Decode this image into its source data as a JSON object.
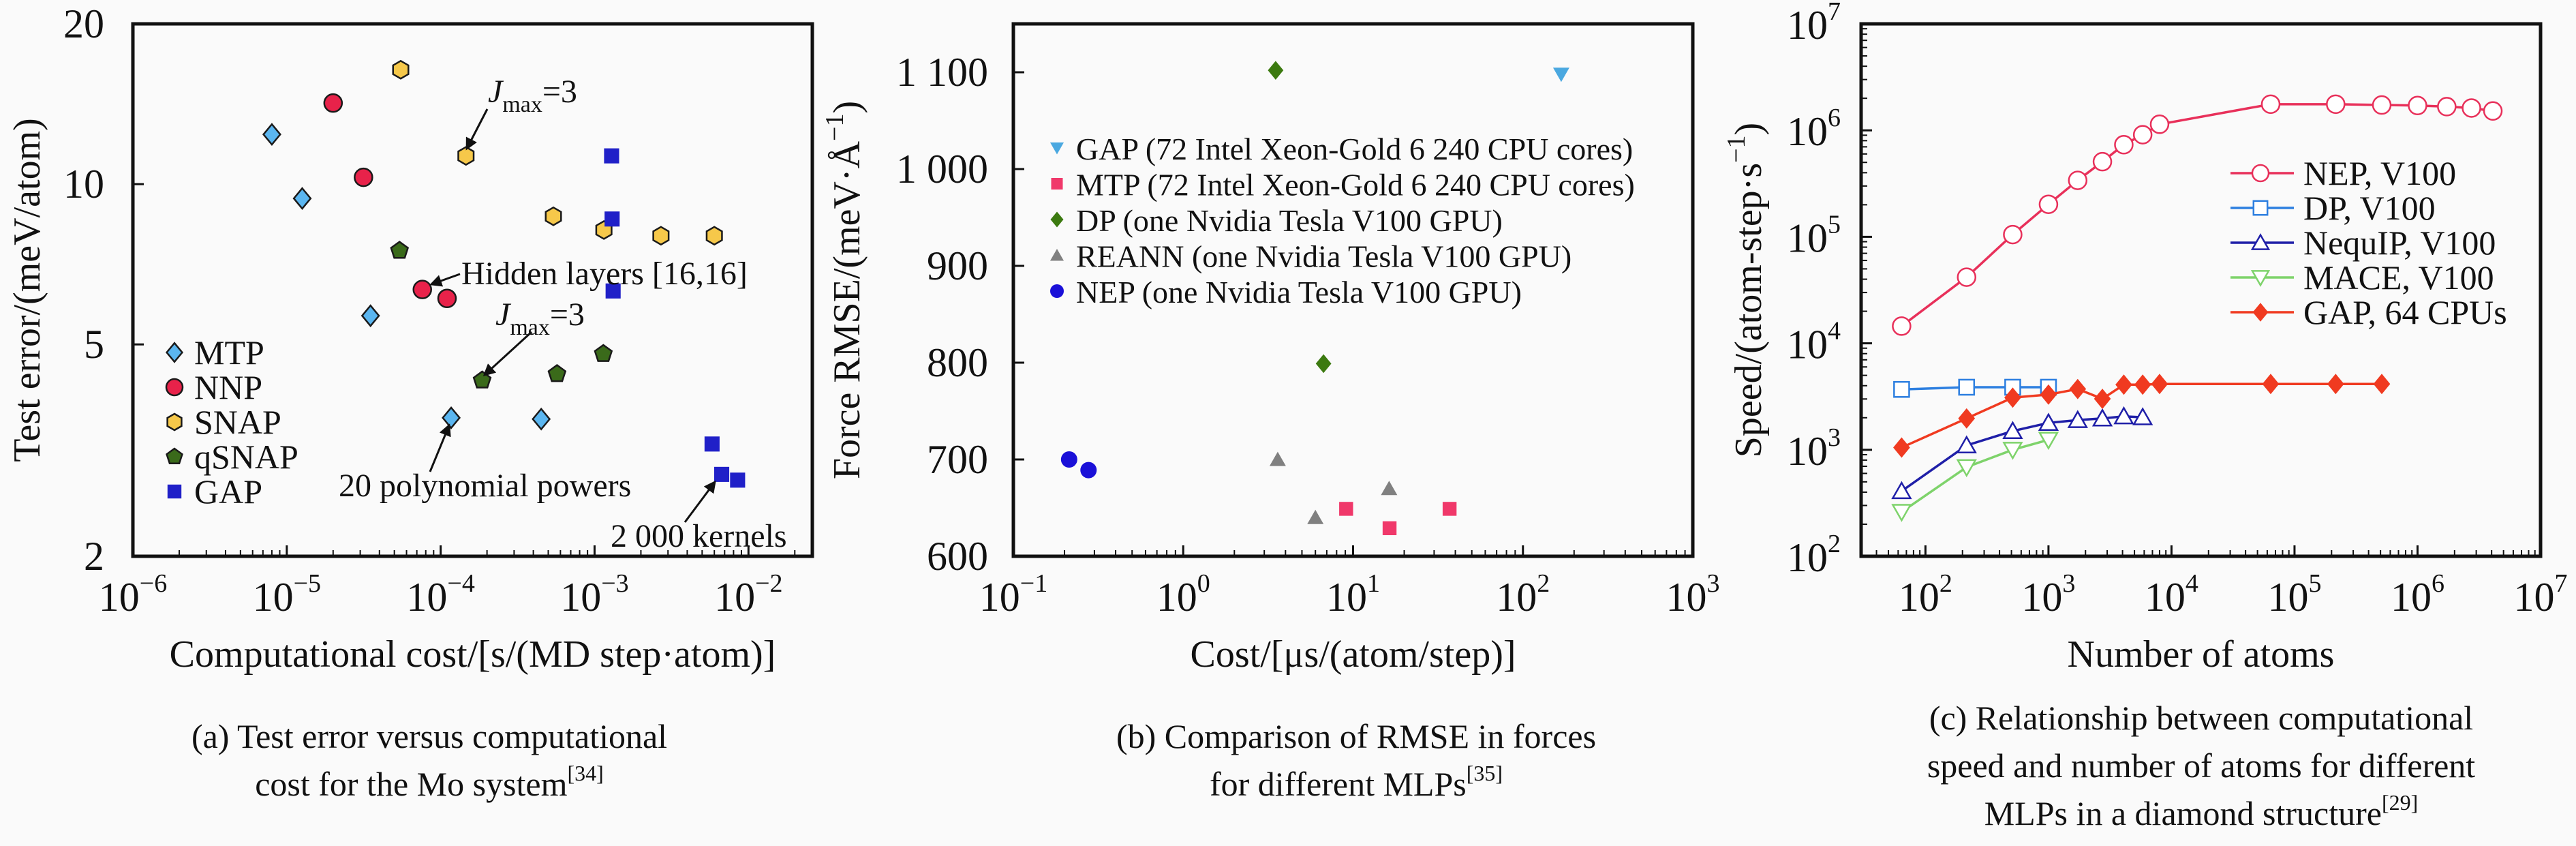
{
  "panels": [
    {
      "id": "a",
      "chart_data": {
        "type": "scatter",
        "xlabel": "Computational cost/[s/(MD step·atom)]",
        "ylabel": {
          "text": "Test error/(meV/atom)"
        },
        "xscale": "log",
        "yscale": "log",
        "xlim": [
          1e-06,
          0.026
        ],
        "ylim": [
          2,
          20
        ],
        "grid": false,
        "legend": "bottom-left",
        "x_ticks": [
          1e-06,
          1e-05,
          0.0001,
          0.001,
          0.01
        ],
        "x_tick_labels": [
          {
            "base": "10",
            "exp": "−6"
          },
          {
            "base": "10",
            "exp": "−5"
          },
          {
            "base": "10",
            "exp": "−4"
          },
          {
            "base": "10",
            "exp": "−3"
          },
          {
            "base": "10",
            "exp": "−2"
          }
        ],
        "y_ticks": [
          2,
          5,
          10,
          20
        ],
        "y_tick_labels": [
          "2",
          "5",
          "10",
          "20"
        ],
        "series": [
          {
            "name": "MTP",
            "marker": "diamond",
            "color": "#5bb6f0",
            "outline": "#1a1a1a",
            "points": [
              [
                8e-06,
                12.4
              ],
              [
                1.26e-05,
                9.4
              ],
              [
                3.5e-05,
                5.66
              ],
              [
                0.000117,
                3.64
              ],
              [
                0.00045,
                3.62
              ]
            ]
          },
          {
            "name": "NNP",
            "marker": "circle",
            "color": "#e8224a",
            "outline": "#1a1a1a",
            "points": [
              [
                2e-05,
                14.2
              ],
              [
                3.15e-05,
                10.3
              ],
              [
                7.6e-05,
                6.34
              ],
              [
                0.00011,
                6.1
              ]
            ]
          },
          {
            "name": "SNAP",
            "marker": "hexagon",
            "color": "#f6c84a",
            "outline": "#1a1a1a",
            "points": [
              [
                5.5e-05,
                16.4
              ],
              [
                0.000146,
                11.3
              ],
              [
                0.00054,
                8.7
              ],
              [
                0.00115,
                8.2
              ],
              [
                0.0027,
                8.0
              ],
              [
                0.006,
                8.0
              ]
            ]
          },
          {
            "name": "qSNAP",
            "marker": "pentagon",
            "color": "#3a6a1a",
            "outline": "#1a1a1a",
            "points": [
              [
                5.4e-05,
                7.5
              ],
              [
                0.000186,
                4.28
              ],
              [
                0.00057,
                4.4
              ],
              [
                0.00114,
                4.8
              ]
            ]
          },
          {
            "name": "GAP",
            "marker": "square",
            "color": "#2020c8",
            "outline": "none",
            "points": [
              [
                0.00129,
                11.3
              ],
              [
                0.0013,
                8.6
              ],
              [
                0.00132,
                6.3
              ],
              [
                0.0058,
                3.25
              ],
              [
                0.0067,
                2.85
              ],
              [
                0.0085,
                2.78
              ]
            ]
          }
        ],
        "annotations": [
          {
            "symbol": "J",
            "subscript": "max",
            "text": "=3"
          },
          {
            "text": "Hidden layers [16,16]"
          },
          {
            "symbol": "J",
            "subscript": "max",
            "text": "=3"
          },
          {
            "text": "20 polynomial powers"
          },
          {
            "text": "2 000 kernels"
          }
        ]
      },
      "caption": {
        "lines": [
          "(a) Test error versus computational",
          "cost for the Mo system"
        ],
        "ref": "[34]"
      }
    },
    {
      "id": "b",
      "chart_data": {
        "type": "scatter",
        "xlabel": "Cost/[μs/(atom/step)]",
        "ylabel": {
          "text": "Force RMSE/(meV·Å",
          "sup": "−1",
          "close": ")"
        },
        "xscale": "log",
        "yscale": "linear",
        "xlim": [
          0.1,
          1000
        ],
        "ylim": [
          600,
          1150
        ],
        "grid": false,
        "legend": "upper-left",
        "x_ticks": [
          0.1,
          1,
          10,
          100,
          1000
        ],
        "x_tick_labels": [
          {
            "base": "10",
            "exp": "−1"
          },
          {
            "base": "10",
            "exp": "0"
          },
          {
            "base": "10",
            "exp": "1"
          },
          {
            "base": "10",
            "exp": "2"
          },
          {
            "base": "10",
            "exp": "3"
          }
        ],
        "y_ticks": [
          600,
          700,
          800,
          900,
          1000,
          1100
        ],
        "y_tick_labels": [
          "600",
          "700",
          "800",
          "900",
          "1 000",
          "1 100"
        ],
        "series": [
          {
            "name": "GAP (72 Intel Xeon-Gold 6 240 CPU cores)",
            "marker": "triangle-down",
            "color": "#4aa8e0",
            "outline": "none",
            "points": [
              [
                168,
                1098
              ]
            ]
          },
          {
            "name": "MTP (72 Intel Xeon-Gold 6 240 CPU cores)",
            "marker": "square",
            "color": "#f0386a",
            "outline": "none",
            "points": [
              [
                9.1,
                649
              ],
              [
                16.4,
                629
              ],
              [
                37,
                649
              ]
            ]
          },
          {
            "name": "DP (one Nvidia Tesla V100 GPU)",
            "marker": "diamond",
            "color": "#3c7a10",
            "outline": "none",
            "points": [
              [
                3.5,
                1102
              ],
              [
                6.7,
                799
              ]
            ]
          },
          {
            "name": "REANN (one Nvidia Tesla V100 GPU)",
            "marker": "triangle-up",
            "color": "#808080",
            "outline": "none",
            "points": [
              [
                3.6,
                700
              ],
              [
                6.0,
                640
              ],
              [
                16.3,
                670
              ]
            ]
          },
          {
            "name": "NEP (one Nvidia Tesla V100 GPU)",
            "marker": "circle",
            "color": "#1a10d8",
            "outline": "none",
            "points": [
              [
                0.213,
                700
              ],
              [
                0.277,
                689
              ]
            ]
          }
        ]
      },
      "caption": {
        "lines": [
          "(b) Comparison of RMSE in forces",
          "for different MLPs"
        ],
        "ref": "[35]"
      }
    },
    {
      "id": "c",
      "chart_data": {
        "type": "line",
        "xlabel": "Number of atoms",
        "ylabel": {
          "text": "Speed/(atom-step·s",
          "sup": "−1",
          "close": ")"
        },
        "xscale": "log",
        "yscale": "log",
        "xlim": [
          30,
          10000000.0
        ],
        "ylim": [
          100,
          10000000.0
        ],
        "grid": false,
        "legend": "center-right",
        "x_ticks": [
          100,
          1000,
          10000,
          100000,
          1000000,
          10000000
        ],
        "x_tick_labels": [
          {
            "base": "10",
            "exp": "2"
          },
          {
            "base": "10",
            "exp": "3"
          },
          {
            "base": "10",
            "exp": "4"
          },
          {
            "base": "10",
            "exp": "5"
          },
          {
            "base": "10",
            "exp": "6"
          },
          {
            "base": "10",
            "exp": "7"
          }
        ],
        "y_ticks": [
          100,
          1000,
          10000,
          100000,
          1000000,
          10000000
        ],
        "y_tick_labels": [
          {
            "base": "10",
            "exp": "2"
          },
          {
            "base": "10",
            "exp": "3"
          },
          {
            "base": "10",
            "exp": "4"
          },
          {
            "base": "10",
            "exp": "5"
          },
          {
            "base": "10",
            "exp": "6"
          },
          {
            "base": "10",
            "exp": "7"
          }
        ],
        "series": [
          {
            "name": "NEP, V100",
            "marker": "circle-open",
            "color": "#e8305a",
            "points": [
              [
                64,
                14500
              ],
              [
                216,
                41800
              ],
              [
                512,
                105000
              ],
              [
                1000,
                202000
              ],
              [
                1728,
                339000
              ],
              [
                2744,
                508000
              ],
              [
                4096,
                733000
              ],
              [
                5832,
                910000
              ],
              [
                8000,
                1140000
              ],
              [
                64000,
                1760000
              ],
              [
                216000,
                1760000
              ],
              [
                512000,
                1730000
              ],
              [
                1000000,
                1710000
              ],
              [
                1728000,
                1670000
              ],
              [
                2744000,
                1620000
              ],
              [
                4096000,
                1520000
              ]
            ]
          },
          {
            "name": "DP, V100",
            "marker": "square-open",
            "color": "#2d7fe0",
            "points": [
              [
                64,
                3690
              ],
              [
                216,
                3870
              ],
              [
                512,
                3870
              ],
              [
                1000,
                3870
              ]
            ]
          },
          {
            "name": "NequIP, V100",
            "marker": "triangle-open",
            "color": "#1f1fa8",
            "points": [
              [
                64,
                409
              ],
              [
                216,
                1100
              ],
              [
                512,
                1500
              ],
              [
                1000,
                1790
              ],
              [
                1728,
                1900
              ],
              [
                2744,
                1970
              ],
              [
                4096,
                2060
              ],
              [
                5832,
                2020
              ]
            ]
          },
          {
            "name": "MACE, V100",
            "marker": "triangle-down-open",
            "color": "#7ed36b",
            "points": [
              [
                64,
                261
              ],
              [
                216,
                687
              ],
              [
                512,
                1000
              ],
              [
                1000,
                1240
              ]
            ]
          },
          {
            "name": "GAP, 64 CPUs",
            "marker": "diamond-filled",
            "color": "#f03a20",
            "points": [
              [
                64,
                1050
              ],
              [
                216,
                1970
              ],
              [
                512,
                3090
              ],
              [
                1000,
                3300
              ],
              [
                1728,
                3720
              ],
              [
                2744,
                3010
              ],
              [
                4096,
                4090
              ],
              [
                5832,
                4090
              ],
              [
                8000,
                4150
              ],
              [
                64000,
                4150
              ],
              [
                216000,
                4150
              ],
              [
                512000,
                4150
              ]
            ]
          }
        ]
      },
      "caption": {
        "lines": [
          "(c) Relationship between computational",
          "speed and number of atoms for different",
          "MLPs in a diamond structure"
        ],
        "ref": "[29]"
      }
    }
  ]
}
